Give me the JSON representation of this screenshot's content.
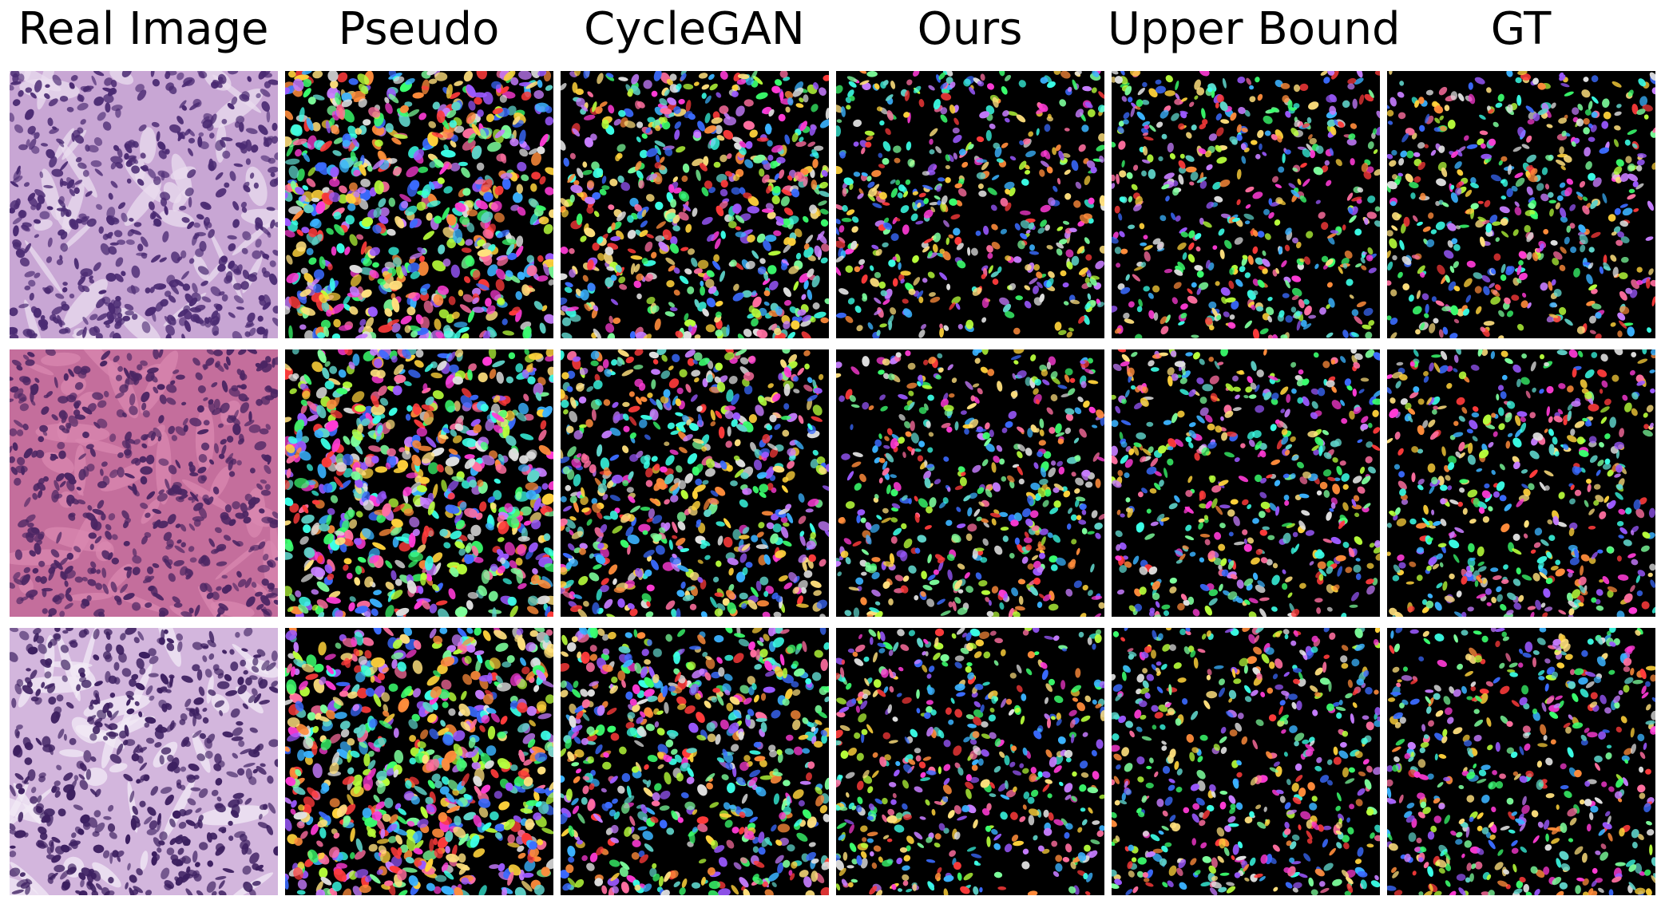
{
  "columns": [
    "Real Image",
    "Pseudo",
    "CycleGAN",
    "Ours",
    "Upper Bound",
    "GT"
  ],
  "rows": [
    {
      "name": "row-1",
      "tissue": {
        "stain": "#c8a6d4",
        "nuclei": "#4a2a72",
        "stroma": "#e9dcef"
      }
    },
    {
      "name": "row-2",
      "tissue": {
        "stain": "#c46e9c",
        "nuclei": "#4b2563",
        "stroma": "#d988b0"
      }
    },
    {
      "name": "row-3",
      "tissue": {
        "stain": "#d3b6dd",
        "nuclei": "#3c1f60",
        "stroma": "#f2eaf5"
      }
    }
  ],
  "palette": [
    "#ff3b3b",
    "#3bff6e",
    "#3b6bff",
    "#ffd23b",
    "#ff3bd6",
    "#3bffe7",
    "#9b59ff",
    "#ff8c3b",
    "#b8ff3b",
    "#3bb3ff",
    "#ff6fa0",
    "#7dff9c",
    "#c77dff",
    "#ffe07d",
    "#5fd3c9",
    "#e0e0e0"
  ]
}
